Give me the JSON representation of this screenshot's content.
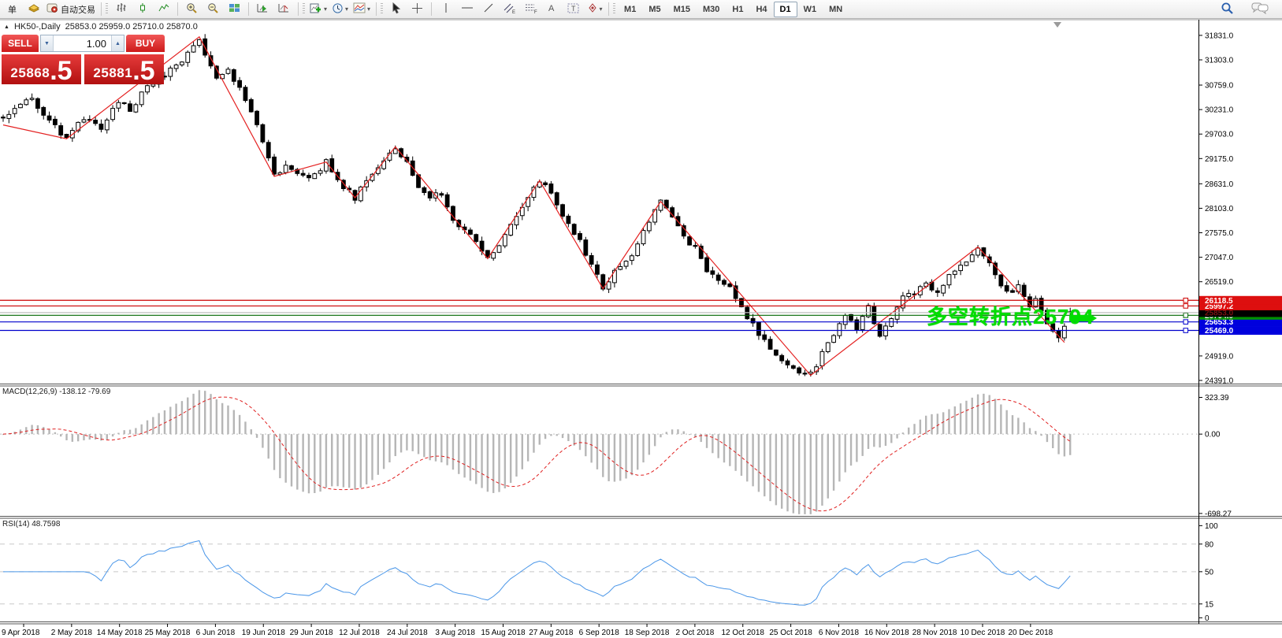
{
  "toolbar": {
    "new_order_label": "单",
    "autotrading_label": "自动交易",
    "timeframes": [
      "M1",
      "M5",
      "M15",
      "M30",
      "H1",
      "H4",
      "D1",
      "W1",
      "MN"
    ],
    "active_timeframe": "D1"
  },
  "chart": {
    "title_symbol": "HK50-,Daily",
    "ohlc": "25853.0 25959.0 25710.0 25870.0"
  },
  "trade_panel": {
    "sell_label": "SELL",
    "buy_label": "BUY",
    "volume": "1.00",
    "sell_price_main": "25868",
    "sell_price_frac": ".5",
    "buy_price_main": "25881",
    "buy_price_frac": ".5"
  },
  "indicators": {
    "macd_label": "MACD(12,26,9) -138.12 -79.69",
    "rsi_label": "RSI(14) 48.7598"
  },
  "annotation": {
    "text": "多空转折点25794",
    "color": "#00dd00"
  },
  "axis": {
    "main_ticks": [
      "31831.0",
      "31303.0",
      "30759.0",
      "30231.0",
      "29703.0",
      "29175.0",
      "28631.0",
      "28103.0",
      "27575.0",
      "27047.0",
      "26519.0",
      "24919.0",
      "24391.0"
    ],
    "main_tick_values": [
      31831.0,
      31303.0,
      30759.0,
      30231.0,
      29703.0,
      29175.0,
      28631.0,
      28103.0,
      27575.0,
      27047.0,
      26519.0,
      24919.0,
      24391.0
    ],
    "macd_ticks": [
      "323.39",
      "0.00",
      "-698.27"
    ],
    "macd_tick_values": [
      323.39,
      0,
      -698.27
    ],
    "rsi_ticks": [
      "100",
      "80",
      "50",
      "15",
      "0"
    ],
    "rsi_tick_values": [
      100,
      80,
      50,
      15,
      0
    ]
  },
  "levels": [
    {
      "price": 25469.0,
      "label": "25469.0",
      "line": "#0000cc",
      "box": "#0000dd",
      "text": "#ffffff",
      "handle": true
    },
    {
      "price": 25653.3,
      "label": "25653.3",
      "line": "#0000cc",
      "box": "#0000dd",
      "text": "#ffffff",
      "handle": true
    },
    {
      "price": 25794.9,
      "label": "25794.9",
      "line": "#006600",
      "box": "#008f00",
      "text": "#ffffff",
      "handle": true
    },
    {
      "price": 25853.0,
      "label": "25853.0",
      "line": "#c0c0c0",
      "box": "#000000",
      "text": "#7a1212",
      "handle": false
    },
    {
      "price": 25997.2,
      "label": "25997.2",
      "line": "#cc0000",
      "box": "#dd0f0f",
      "text": "#ffffff",
      "handle": true
    },
    {
      "price": 26118.5,
      "label": "26118.5",
      "line": "#cc0000",
      "box": "#dd0f0f",
      "text": "#ffffff",
      "handle": true
    }
  ],
  "dates": [
    "9 Apr 2018",
    "2 May 2018",
    "14 May 2018",
    "25 May 2018",
    "6 Jun 2018",
    "19 Jun 2018",
    "29 Jun 2018",
    "12 Jul 2018",
    "24 Jul 2018",
    "3 Aug 2018",
    "15 Aug 2018",
    "27 Aug 2018",
    "6 Sep 2018",
    "18 Sep 2018",
    "2 Oct 2018",
    "12 Oct 2018",
    "25 Oct 2018",
    "6 Nov 2018",
    "16 Nov 2018",
    "28 Nov 2018",
    "10 Dec 2018",
    "20 Dec 2018"
  ],
  "chart_data": {
    "type": "candlestick",
    "symbol": "HK50",
    "timeframe": "Daily",
    "bars": 186,
    "current_bar": {
      "open": 25853.0,
      "high": 25959.0,
      "low": 25710.0,
      "close": 25870.0
    },
    "bid": 25868.5,
    "ask": 25881.5,
    "ylim_main": [
      24391.0,
      31831.0
    ],
    "ylim_macd": [
      -698.27,
      323.39
    ],
    "ylim_rsi": [
      0,
      100
    ],
    "rsi_levels": [
      80,
      50,
      15
    ],
    "price_path": [
      [
        0,
        30050
      ],
      [
        2,
        30250
      ],
      [
        5,
        30480
      ],
      [
        8,
        29950
      ],
      [
        11,
        29620
      ],
      [
        13,
        29900
      ],
      [
        15,
        30050
      ],
      [
        17,
        29850
      ],
      [
        20,
        30420
      ],
      [
        22,
        30250
      ],
      [
        25,
        30700
      ],
      [
        28,
        31000
      ],
      [
        31,
        31300
      ],
      [
        34,
        31780
      ],
      [
        35,
        31400
      ],
      [
        37,
        30950
      ],
      [
        39,
        31150
      ],
      [
        41,
        30650
      ],
      [
        44,
        29900
      ],
      [
        47,
        28800
      ],
      [
        49,
        29050
      ],
      [
        51,
        28850
      ],
      [
        53,
        28700
      ],
      [
        56,
        29100
      ],
      [
        58,
        28700
      ],
      [
        61,
        28340
      ],
      [
        63,
        28750
      ],
      [
        65,
        29000
      ],
      [
        68,
        29430
      ],
      [
        70,
        29050
      ],
      [
        72,
        28500
      ],
      [
        74,
        28300
      ],
      [
        76,
        28450
      ],
      [
        78,
        27900
      ],
      [
        81,
        27500
      ],
      [
        84,
        27030
      ],
      [
        86,
        27300
      ],
      [
        88,
        27700
      ],
      [
        90,
        28150
      ],
      [
        93,
        28700
      ],
      [
        95,
        28400
      ],
      [
        97,
        27900
      ],
      [
        99,
        27600
      ],
      [
        101,
        27150
      ],
      [
        104,
        26380
      ],
      [
        106,
        26700
      ],
      [
        108,
        26950
      ],
      [
        110,
        27300
      ],
      [
        112,
        27850
      ],
      [
        114,
        28250
      ],
      [
        116,
        27950
      ],
      [
        118,
        27500
      ],
      [
        120,
        27250
      ],
      [
        122,
        26750
      ],
      [
        124,
        26600
      ],
      [
        126,
        26400
      ],
      [
        128,
        25950
      ],
      [
        130,
        25600
      ],
      [
        132,
        25250
      ],
      [
        134,
        24950
      ],
      [
        136,
        24750
      ],
      [
        138,
        24600
      ],
      [
        140,
        24520
      ],
      [
        142,
        24950
      ],
      [
        144,
        25350
      ],
      [
        146,
        25850
      ],
      [
        148,
        25500
      ],
      [
        150,
        25950
      ],
      [
        152,
        25350
      ],
      [
        154,
        25750
      ],
      [
        156,
        26150
      ],
      [
        158,
        26300
      ],
      [
        160,
        26500
      ],
      [
        162,
        26300
      ],
      [
        164,
        26650
      ],
      [
        166,
        26850
      ],
      [
        168,
        27050
      ],
      [
        169,
        27260
      ],
      [
        171,
        26900
      ],
      [
        173,
        26450
      ],
      [
        175,
        26250
      ],
      [
        176,
        26400
      ],
      [
        177,
        26150
      ],
      [
        178,
        25950
      ],
      [
        179,
        26100
      ],
      [
        180,
        25850
      ],
      [
        181,
        25600
      ],
      [
        182,
        25400
      ],
      [
        183,
        25280
      ],
      [
        184,
        25600
      ],
      [
        185,
        25870
      ]
    ],
    "zigzag": [
      [
        0,
        29900
      ],
      [
        11,
        29600
      ],
      [
        34,
        31800
      ],
      [
        47,
        28790
      ],
      [
        56,
        29100
      ],
      [
        61,
        28330
      ],
      [
        68,
        29430
      ],
      [
        84,
        27020
      ],
      [
        93,
        28700
      ],
      [
        104,
        26370
      ],
      [
        114,
        28250
      ],
      [
        140,
        24500
      ],
      [
        169,
        27270
      ],
      [
        184,
        25210
      ]
    ],
    "macd": {
      "params": [
        12,
        26,
        9
      ],
      "current": [
        -138.12,
        -79.69
      ],
      "histogram_color": "#b6b6b6",
      "signal_color": "#e02020"
    },
    "rsi": {
      "period": 14,
      "current": 48.7598,
      "color": "#4a96e8"
    }
  },
  "colors": {
    "level_red": "#cc0000",
    "level_green": "#007700",
    "level_blue": "#0000cc",
    "zigzag": "#e42222",
    "panel_red": "#d42020",
    "annotation_green": "#00dd00"
  }
}
